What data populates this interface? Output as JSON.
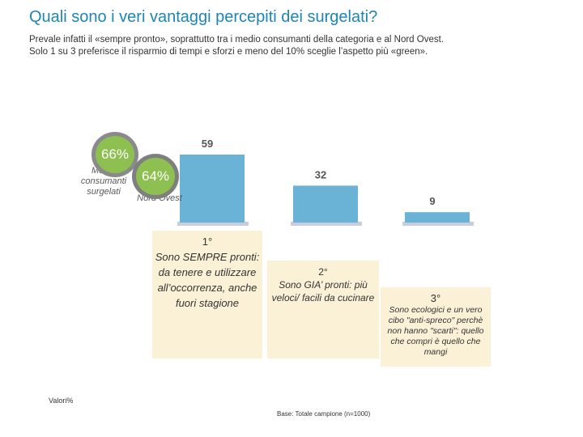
{
  "title": "Quali sono i veri vantaggi percepiti dei surgelati?",
  "subtitle": {
    "line1": "Prevale infatti il «sempre pronto», soprattutto tra i medio consumanti della categoria e al Nord Ovest.",
    "line2": "Solo 1 su 3 preferisce il risparmio di tempi e sforzi e meno del 10% sceglie l’aspetto più «green»."
  },
  "chart_data": {
    "type": "bar",
    "categories": [
      "1° Sono SEMPRE pronti: da tenere e utilizzare all’occorrenza, anche fuori stagione",
      "2° Sono GIA’ pronti: più veloci/ facili da cucinare",
      "3° Sono ecologici e un vero cibo \"anti-spreco\" perchè non hanno \"scarti\": quello che compri è quello che mangi"
    ],
    "values": [
      59,
      32,
      9
    ],
    "value_labels": [
      "59",
      "32",
      "9"
    ],
    "bar_color": "#6ab2d6",
    "ylim": [
      0,
      59
    ],
    "grid": false,
    "legend": "none"
  },
  "captions": [
    {
      "rank": "1°",
      "text": "Sono SEMPRE pronti: da tenere e utilizzare all’occorrenza, anche fuori stagione"
    },
    {
      "rank": "2°",
      "text": "Sono GIA’ pronti: più veloci/ facili da cucinare"
    },
    {
      "rank": "3°",
      "text": "Sono ecologici e un vero cibo \"anti-spreco\" perchè non hanno \"scarti\": quello che compri è quello che mangi"
    }
  ],
  "callouts": [
    {
      "value": "66%",
      "label": "Medio consumanti surgelati"
    },
    {
      "value": "64%",
      "label": "Nord Ovest"
    }
  ],
  "footnotes": {
    "unit": "Valori%",
    "base": "Base: Totale campione (n=1000)"
  },
  "colors": {
    "title": "#1e86b6",
    "bar": "#6ab2d6",
    "caption_bg": "#fbf1d6",
    "bubble": "#8dc050",
    "bubble_ring": "#808080"
  }
}
